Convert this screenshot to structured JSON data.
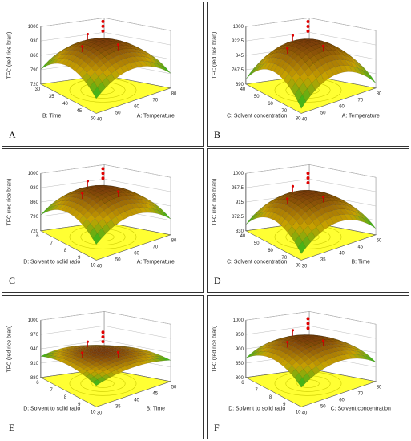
{
  "chart_data": [
    {
      "type": "surface",
      "panel": "A",
      "zlabel": "TFC (red rice bran)",
      "zticks": [
        "1000",
        "930",
        "860",
        "790",
        "720"
      ],
      "xlabel": "A: Temperature",
      "xticks": [
        "40",
        "50",
        "60",
        "70",
        "80"
      ],
      "ylabel": "B: Time",
      "yticks": [
        "30",
        "35",
        "40",
        "45",
        "50"
      ],
      "zlim": [
        720,
        1000
      ],
      "surface_peak": 960,
      "surface_min": 780
    },
    {
      "type": "surface",
      "panel": "B",
      "zlabel": "TFC (red rice bran)",
      "zticks": [
        "1000",
        "922.5",
        "845",
        "767.5",
        "690"
      ],
      "xlabel": "A: Temperature",
      "xticks": [
        "40",
        "50",
        "60",
        "70",
        "80"
      ],
      "ylabel": "C: Solvent concentration",
      "yticks": [
        "40",
        "50",
        "60",
        "70",
        "80"
      ],
      "zlim": [
        690,
        1000
      ],
      "surface_peak": 955,
      "surface_min": 700
    },
    {
      "type": "surface",
      "panel": "C",
      "zlabel": "TFC (red rice bran)",
      "zticks": [
        "1000",
        "930",
        "860",
        "790",
        "720"
      ],
      "xlabel": "A: Temperature",
      "xticks": [
        "40",
        "50",
        "60",
        "70",
        "80"
      ],
      "ylabel": "D: Solvent to solid ratio",
      "yticks": [
        "6",
        "7",
        "8",
        "9",
        "10"
      ],
      "zlim": [
        720,
        1000
      ],
      "surface_peak": 958,
      "surface_min": 785
    },
    {
      "type": "surface",
      "panel": "D",
      "zlabel": "TFC (red rice bran)",
      "zticks": [
        "1000",
        "957.5",
        "915",
        "872.5",
        "830"
      ],
      "xlabel": "B: Time",
      "xticks": [
        "30",
        "35",
        "40",
        "45",
        "50"
      ],
      "ylabel": "C: Solvent concentration",
      "yticks": [
        "40",
        "50",
        "60",
        "70",
        "80"
      ],
      "zlim": [
        830,
        1000
      ],
      "surface_peak": 960,
      "surface_min": 840
    },
    {
      "type": "surface",
      "panel": "E",
      "zlabel": "TFC (red rice bran)",
      "zticks": [
        "1000",
        "970",
        "940",
        "910",
        "880"
      ],
      "xlabel": "B: Time",
      "xticks": [
        "30",
        "35",
        "40",
        "45",
        "50"
      ],
      "ylabel": "D: Solvent to solid ratio",
      "yticks": [
        "6",
        "7",
        "8",
        "9",
        "10"
      ],
      "zlim": [
        880,
        1000
      ],
      "surface_peak": 945,
      "surface_min": 920
    },
    {
      "type": "surface",
      "panel": "F",
      "zlabel": "TFC (red rice bran)",
      "zticks": [
        "1000",
        "950",
        "900",
        "850",
        "800"
      ],
      "xlabel": "C: Solvent concentration",
      "xticks": [
        "40",
        "50",
        "60",
        "70",
        "80"
      ],
      "ylabel": "D: Solvent to solid ratio",
      "yticks": [
        "6",
        "7",
        "8",
        "9",
        "10"
      ],
      "zlim": [
        800,
        1000
      ],
      "surface_peak": 958,
      "surface_min": 860
    }
  ],
  "panel_letters": [
    "A",
    "B",
    "C",
    "D",
    "E",
    "F"
  ],
  "colors": {
    "surface_high": "#7a3c0a",
    "surface_mid": "#c8a200",
    "surface_low": "#1fb81f",
    "floor": "#ffff33",
    "design_point": "#e00000"
  }
}
